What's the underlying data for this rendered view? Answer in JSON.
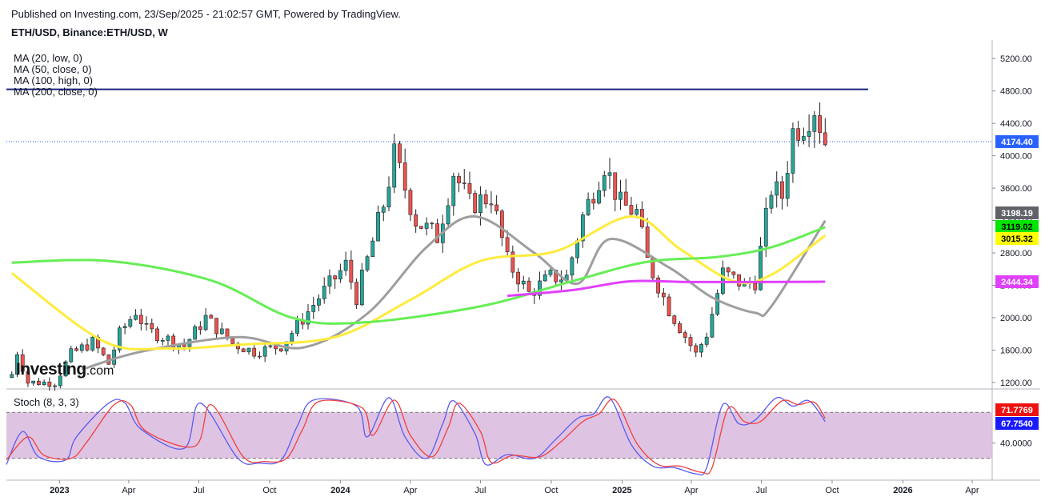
{
  "header": {
    "published": "Published on Investing.com, 23/Sep/2025 - 21:02:57 GMT, Powered by TradingView.",
    "symbol": "ETH/USD, Binance:ETH/USD, W"
  },
  "logo": {
    "main": "Investing",
    "suffix": ".com"
  },
  "ma_labels": [
    "MA (20, low, 0)",
    "MA (50, close, 0)",
    "MA (100, high, 0)",
    "MA (200, close, 0)"
  ],
  "colors": {
    "up": "#26a69a",
    "down": "#ef5350",
    "ma20": "#9e9e9e",
    "ma50": "#ffeb3b",
    "ma100": "#66ee55",
    "ma200": "#e040fb",
    "resistance": "#1a237e",
    "stoch_k": "#5b5bf0",
    "stoch_d": "#f04040",
    "stoch_band": "#d9b8dd"
  },
  "chart_data": [
    {
      "type": "candlestick",
      "title": "ETH/USD, Binance:ETH/USD, W",
      "ylim": [
        1100,
        5350
      ],
      "yticks": [
        1200,
        1600,
        2000,
        2400,
        2800,
        3200,
        3600,
        4000,
        4400,
        4800,
        5200
      ],
      "xlim": [
        "2022-10-24",
        "2026-04-27"
      ],
      "xticks": [
        {
          "label": "2023",
          "date": "2023-01-01",
          "bold": true
        },
        {
          "label": "Apr",
          "date": "2023-04-01"
        },
        {
          "label": "Jul",
          "date": "2023-07-01"
        },
        {
          "label": "Oct",
          "date": "2023-10-01"
        },
        {
          "label": "2024",
          "date": "2024-01-01",
          "bold": true
        },
        {
          "label": "Apr",
          "date": "2024-04-01"
        },
        {
          "label": "Jul",
          "date": "2024-07-01"
        },
        {
          "label": "Oct",
          "date": "2024-10-01"
        },
        {
          "label": "2025",
          "date": "2025-01-01",
          "bold": true
        },
        {
          "label": "Apr",
          "date": "2025-04-01"
        },
        {
          "label": "Jul",
          "date": "2025-07-01"
        },
        {
          "label": "Oct",
          "date": "2025-10-01"
        },
        {
          "label": "2026",
          "date": "2026-01-01",
          "bold": true
        },
        {
          "label": "Apr",
          "date": "2026-04-01"
        }
      ],
      "resistance_level": 4820,
      "last_price": 4174.4,
      "last_price_label": "4174.40",
      "ohlc_anchors": [
        {
          "date": "2022-10-31",
          "close": 1300
        },
        {
          "date": "2022-11-07",
          "close": 1580
        },
        {
          "date": "2022-11-21",
          "close": 1200
        },
        {
          "date": "2022-12-26",
          "close": 1200
        },
        {
          "date": "2023-01-16",
          "close": 1550
        },
        {
          "date": "2023-02-13",
          "close": 1700
        },
        {
          "date": "2023-03-06",
          "close": 1430
        },
        {
          "date": "2023-03-20",
          "close": 1800
        },
        {
          "date": "2023-04-10",
          "close": 2080
        },
        {
          "date": "2023-04-24",
          "close": 1850
        },
        {
          "date": "2023-06-12",
          "close": 1650
        },
        {
          "date": "2023-07-10",
          "close": 2000
        },
        {
          "date": "2023-08-14",
          "close": 1680
        },
        {
          "date": "2023-09-11",
          "close": 1580
        },
        {
          "date": "2023-10-16",
          "close": 1650
        },
        {
          "date": "2023-11-06",
          "close": 1900
        },
        {
          "date": "2023-12-04",
          "close": 2250
        },
        {
          "date": "2024-01-08",
          "close": 2650
        },
        {
          "date": "2024-01-22",
          "close": 2250
        },
        {
          "date": "2024-02-26",
          "close": 3400
        },
        {
          "date": "2024-03-11",
          "close": 4000
        },
        {
          "date": "2024-04-08",
          "close": 3200
        },
        {
          "date": "2024-05-06",
          "close": 3000
        },
        {
          "date": "2024-05-27",
          "close": 3800
        },
        {
          "date": "2024-06-17",
          "close": 3400
        },
        {
          "date": "2024-07-15",
          "close": 3500
        },
        {
          "date": "2024-08-05",
          "close": 2700
        },
        {
          "date": "2024-09-02",
          "close": 2300
        },
        {
          "date": "2024-09-30",
          "close": 2500
        },
        {
          "date": "2024-10-21",
          "close": 2500
        },
        {
          "date": "2024-11-11",
          "close": 3250
        },
        {
          "date": "2024-12-09",
          "close": 3900
        },
        {
          "date": "2024-12-30",
          "close": 3400
        },
        {
          "date": "2025-01-20",
          "close": 3300
        },
        {
          "date": "2025-02-03",
          "close": 2700
        },
        {
          "date": "2025-03-03",
          "close": 2100
        },
        {
          "date": "2025-04-07",
          "close": 1550
        },
        {
          "date": "2025-04-21",
          "close": 1800
        },
        {
          "date": "2025-05-12",
          "close": 2550
        },
        {
          "date": "2025-06-09",
          "close": 2400
        },
        {
          "date": "2025-06-23",
          "close": 2450
        },
        {
          "date": "2025-07-14",
          "close": 3600
        },
        {
          "date": "2025-07-28",
          "close": 3500
        },
        {
          "date": "2025-08-11",
          "close": 4300
        },
        {
          "date": "2025-08-25",
          "close": 4400
        },
        {
          "date": "2025-09-08",
          "close": 4600
        },
        {
          "date": "2025-09-22",
          "close": 4174
        }
      ],
      "series": [
        {
          "name": "MA (20, low, 0)",
          "color": "#9e9e9e",
          "last": 3198.19,
          "last_label": "3198.19",
          "x": [
            "2023-01-30",
            "2023-04-17",
            "2023-08-21",
            "2023-11-13",
            "2024-02-05",
            "2024-04-22",
            "2024-06-24",
            "2024-09-09",
            "2024-11-04",
            "2024-12-16",
            "2025-03-03",
            "2025-04-28",
            "2025-06-23",
            "2025-07-14",
            "2025-09-22"
          ],
          "y": [
            1360,
            1580,
            1760,
            1630,
            2050,
            2870,
            3250,
            2800,
            2420,
            2970,
            2620,
            2250,
            2060,
            2140,
            3198
          ]
        },
        {
          "name": "MA (50, close, 0)",
          "color": "#ffeb3b",
          "last": 3015.32,
          "last_label": "3015.32",
          "x": [
            "2022-10-31",
            "2023-02-27",
            "2023-05-22",
            "2023-08-28",
            "2023-12-25",
            "2024-04-01",
            "2024-07-01",
            "2024-10-07",
            "2025-01-13",
            "2025-03-17",
            "2025-05-26",
            "2025-07-14",
            "2025-09-22"
          ],
          "y": [
            2550,
            1710,
            1620,
            1670,
            1760,
            2220,
            2700,
            2820,
            3250,
            2850,
            2450,
            2530,
            3015
          ]
        },
        {
          "name": "MA (100, high, 0)",
          "color": "#66ee55",
          "last": 3119.02,
          "last_label": "3119.02",
          "x": [
            "2022-10-31",
            "2023-03-06",
            "2023-07-17",
            "2023-10-30",
            "2024-01-29",
            "2024-07-01",
            "2024-10-28",
            "2025-02-03",
            "2025-05-05",
            "2025-07-14",
            "2025-09-22"
          ],
          "y": [
            2680,
            2700,
            2460,
            2000,
            1940,
            2140,
            2450,
            2690,
            2750,
            2870,
            3119
          ]
        },
        {
          "name": "MA (200, close, 0)",
          "color": "#e040fb",
          "last": 2444.34,
          "last_label": "2444.34",
          "x": [
            "2024-08-05",
            "2024-10-28",
            "2025-01-13",
            "2025-04-07",
            "2025-09-22"
          ],
          "y": [
            2270,
            2340,
            2450,
            2440,
            2444
          ]
        }
      ]
    },
    {
      "type": "line",
      "title": "Stoch (8, 3, 3)",
      "ylim": [
        0,
        100
      ],
      "yticks": [
        40
      ],
      "ytick_labels": [
        "40.0000"
      ],
      "band": [
        20,
        80
      ],
      "series": [
        {
          "name": "%K",
          "color": "#5b5bf0",
          "last": 67.754,
          "last_label": "67.7540",
          "x": [
            "2022-10-24",
            "2022-11-14",
            "2022-12-05",
            "2023-01-09",
            "2023-01-23",
            "2023-03-06",
            "2023-03-27",
            "2023-04-17",
            "2023-06-12",
            "2023-07-03",
            "2023-08-21",
            "2023-09-18",
            "2023-10-16",
            "2023-11-06",
            "2023-11-27",
            "2024-01-22",
            "2024-02-05",
            "2024-03-04",
            "2024-03-25",
            "2024-04-22",
            "2024-05-13",
            "2024-05-27",
            "2024-06-24",
            "2024-07-08",
            "2024-08-05",
            "2024-09-09",
            "2024-10-07",
            "2024-11-04",
            "2024-11-25",
            "2024-12-16",
            "2025-01-13",
            "2025-02-10",
            "2025-03-10",
            "2025-04-07",
            "2025-04-21",
            "2025-05-12",
            "2025-06-02",
            "2025-06-23",
            "2025-07-21",
            "2025-08-11",
            "2025-09-01",
            "2025-09-22"
          ],
          "y": [
            12,
            55,
            22,
            18,
            48,
            92,
            92,
            58,
            33,
            92,
            20,
            14,
            18,
            62,
            96,
            88,
            48,
            99,
            48,
            20,
            65,
            95,
            52,
            12,
            25,
            20,
            45,
            72,
            78,
            99,
            38,
            10,
            8,
            0,
            8,
            90,
            65,
            70,
            99,
            88,
            95,
            68
          ]
        },
        {
          "name": "%D",
          "color": "#f04040",
          "last": 71.7769,
          "last_label": "71.7769",
          "x": [
            "2022-10-24",
            "2022-11-21",
            "2022-12-12",
            "2023-01-16",
            "2023-02-06",
            "2023-03-13",
            "2023-04-03",
            "2023-04-24",
            "2023-06-26",
            "2023-07-17",
            "2023-08-28",
            "2023-09-25",
            "2023-10-23",
            "2023-11-13",
            "2023-12-04",
            "2024-01-29",
            "2024-02-12",
            "2024-03-11",
            "2024-04-01",
            "2024-04-29",
            "2024-05-20",
            "2024-06-03",
            "2024-07-01",
            "2024-07-15",
            "2024-08-12",
            "2024-09-16",
            "2024-10-14",
            "2024-11-11",
            "2024-12-02",
            "2024-12-23",
            "2025-01-20",
            "2025-02-17",
            "2025-03-17",
            "2025-04-14",
            "2025-04-28",
            "2025-05-19",
            "2025-06-09",
            "2025-06-30",
            "2025-07-28",
            "2025-08-18",
            "2025-09-08",
            "2025-09-22"
          ],
          "y": [
            18,
            48,
            24,
            20,
            42,
            90,
            90,
            55,
            36,
            90,
            22,
            16,
            20,
            58,
            94,
            86,
            50,
            96,
            50,
            22,
            60,
            92,
            55,
            15,
            24,
            22,
            42,
            68,
            78,
            96,
            40,
            12,
            10,
            2,
            8,
            85,
            68,
            68,
            95,
            90,
            93,
            72
          ]
        }
      ]
    }
  ]
}
